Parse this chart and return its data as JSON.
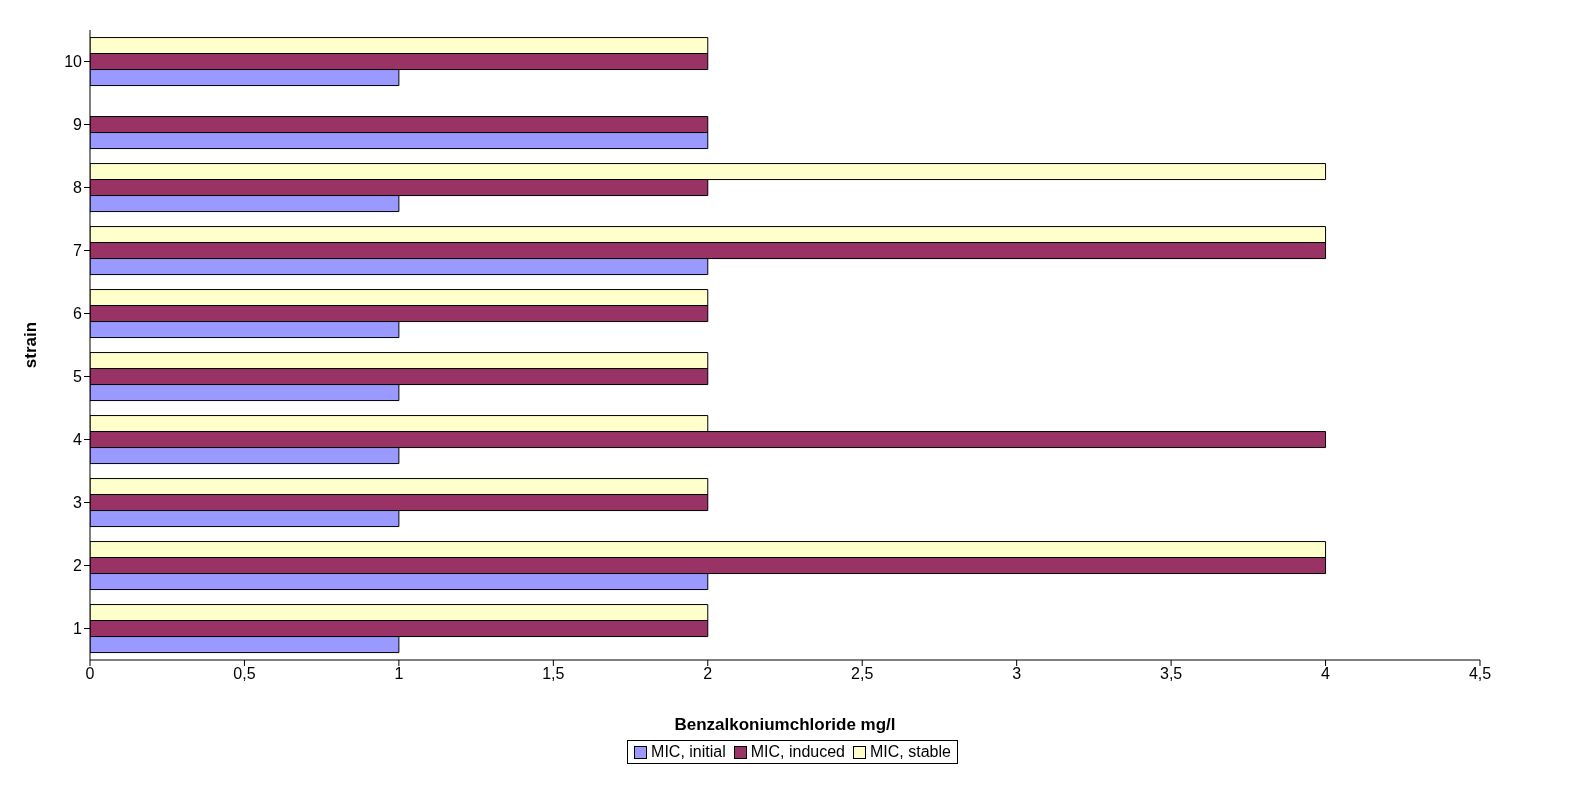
{
  "chart_data": {
    "type": "bar",
    "orientation": "horizontal",
    "xlabel": "Benzalkoniumchloride mg/l",
    "ylabel": "strain",
    "categories": [
      "10",
      "9",
      "8",
      "7",
      "6",
      "5",
      "4",
      "3",
      "2",
      "1"
    ],
    "series": [
      {
        "name": "MIC, initial",
        "color": "#9999ff",
        "values": [
          1,
          2,
          1,
          2,
          1,
          1,
          1,
          1,
          2,
          1
        ]
      },
      {
        "name": "MIC, induced",
        "color": "#993366",
        "values": [
          2,
          2,
          2,
          4,
          2,
          2,
          4,
          2,
          4,
          2
        ]
      },
      {
        "name": "MIC, stable",
        "color": "#ffffcc",
        "values": [
          2,
          null,
          4,
          4,
          2,
          2,
          2,
          2,
          4,
          2
        ]
      }
    ],
    "xlim": [
      0,
      4.5
    ],
    "xticks": [
      0,
      {
        "value": 0.5,
        "label": "0,5"
      },
      1,
      {
        "value": 1.5,
        "label": "1,5"
      },
      2,
      {
        "value": 2.5,
        "label": "2,5"
      },
      3,
      {
        "value": 3.5,
        "label": "3,5"
      },
      4,
      {
        "value": 4.5,
        "label": "4,5"
      }
    ],
    "grid": false,
    "legend": "bottom"
  }
}
